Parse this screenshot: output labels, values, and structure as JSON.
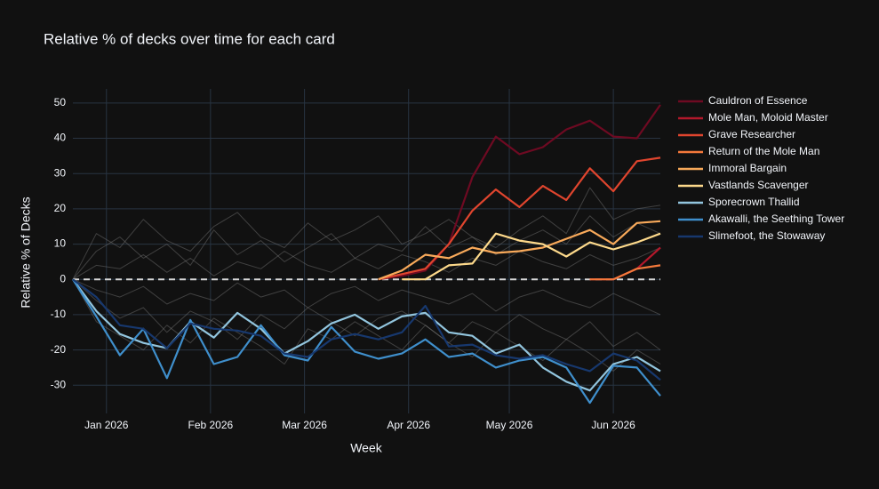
{
  "chart_data": {
    "type": "line",
    "title": "Relative  % of decks over time for each card",
    "x_label": "Week",
    "y_label": "Relative % of Decks",
    "x": [
      "2025-12-22",
      "2025-12-29",
      "2026-01-05",
      "2026-01-12",
      "2026-01-19",
      "2026-01-26",
      "2026-02-02",
      "2026-02-09",
      "2026-02-16",
      "2026-02-23",
      "2026-03-02",
      "2026-03-09",
      "2026-03-16",
      "2026-03-23",
      "2026-03-30",
      "2026-04-06",
      "2026-04-13",
      "2026-04-20",
      "2026-04-27",
      "2026-05-04",
      "2026-05-11",
      "2026-05-18",
      "2026-05-25",
      "2026-06-01",
      "2026-06-08",
      "2026-06-15"
    ],
    "xlim": [
      "2025-12-22",
      "2026-06-15"
    ],
    "xticks": [
      {
        "value": "2026-01-01",
        "label": "Jan 2026"
      },
      {
        "value": "2026-02-01",
        "label": "Feb 2026"
      },
      {
        "value": "2026-03-01",
        "label": "Mar 2026"
      },
      {
        "value": "2026-04-01",
        "label": "Apr 2026"
      },
      {
        "value": "2026-05-01",
        "label": "May 2026"
      },
      {
        "value": "2026-06-01",
        "label": "Jun 2026"
      }
    ],
    "ylim": [
      -38,
      54
    ],
    "yticks": [
      -30,
      -20,
      -10,
      0,
      10,
      20,
      30,
      40,
      50
    ],
    "grid": true,
    "zeroline": true,
    "legend": "right",
    "background_series": [
      {
        "color": "#7a7a7a",
        "values": [
          0,
          8,
          12,
          6,
          10,
          4,
          14,
          7,
          11,
          5,
          9,
          13,
          6,
          10,
          8,
          15,
          9,
          12,
          7,
          11,
          14,
          10,
          18,
          12,
          16,
          13
        ]
      },
      {
        "color": "#7a7a7a",
        "values": [
          0,
          -6,
          -11,
          -8,
          -15,
          -9,
          -12,
          -17,
          -10,
          -14,
          -8,
          -12,
          -16,
          -11,
          -9,
          -13,
          -18,
          -12,
          -15,
          -10,
          -14,
          -17,
          -12,
          -19,
          -15,
          -20
        ]
      },
      {
        "color": "#7a7a7a",
        "values": [
          0,
          4,
          3,
          7,
          2,
          6,
          1,
          5,
          3,
          8,
          4,
          2,
          6,
          3,
          7,
          5,
          2,
          6,
          4,
          8,
          5,
          3,
          7,
          4,
          6,
          9
        ]
      },
      {
        "color": "#7a7a7a",
        "values": [
          0,
          -3,
          -5,
          -2,
          -7,
          -4,
          -6,
          -1,
          -5,
          -3,
          -8,
          -4,
          -2,
          -6,
          -3,
          -5,
          -7,
          -4,
          -9,
          -5,
          -3,
          -6,
          -8,
          -4,
          -7,
          -10
        ]
      },
      {
        "color": "#7a7a7a",
        "values": [
          0,
          13,
          9,
          17,
          11,
          8,
          15,
          19,
          12,
          9,
          16,
          11,
          14,
          18,
          10,
          13,
          17,
          12,
          9,
          14,
          18,
          13,
          26,
          17,
          20,
          21
        ]
      },
      {
        "color": "#7a7a7a",
        "values": [
          0,
          -12,
          -16,
          -20,
          -13,
          -18,
          -11,
          -15,
          -19,
          -24,
          -14,
          -17,
          -12,
          -16,
          -20,
          -13,
          -18,
          -22,
          -15,
          -19,
          -23,
          -17,
          -21,
          -26,
          -20,
          -24
        ]
      }
    ],
    "series": [
      {
        "name": "Cauldron of Essence",
        "color": "#6e0a22",
        "values": [
          null,
          null,
          null,
          null,
          null,
          null,
          null,
          null,
          null,
          null,
          null,
          null,
          null,
          0,
          1,
          2.5,
          10,
          29,
          40.5,
          35.5,
          37.5,
          42.5,
          45,
          40.5,
          40,
          49.5
        ]
      },
      {
        "name": "Mole Man, Moloid Master",
        "color": "#b2182b",
        "values": [
          null,
          null,
          null,
          null,
          null,
          null,
          null,
          null,
          null,
          null,
          null,
          null,
          null,
          null,
          null,
          null,
          null,
          null,
          null,
          null,
          null,
          null,
          0,
          0,
          3,
          9
        ]
      },
      {
        "name": "Grave Researcher",
        "color": "#e0452e",
        "values": [
          null,
          null,
          null,
          null,
          null,
          null,
          null,
          null,
          null,
          null,
          null,
          null,
          null,
          0,
          1.5,
          3,
          10,
          19.5,
          25.5,
          20.5,
          26.5,
          22.5,
          31.5,
          25,
          33.5,
          34.5
        ]
      },
      {
        "name": "Return of the Mole Man",
        "color": "#f4793b",
        "values": [
          null,
          null,
          null,
          null,
          null,
          null,
          null,
          null,
          null,
          null,
          null,
          null,
          null,
          null,
          null,
          null,
          null,
          null,
          null,
          null,
          null,
          null,
          0,
          0,
          3,
          4
        ]
      },
      {
        "name": "Immoral Bargain",
        "color": "#f8a95a",
        "values": [
          null,
          null,
          null,
          null,
          null,
          null,
          null,
          null,
          null,
          null,
          null,
          null,
          null,
          0,
          2.5,
          7,
          6,
          9,
          7.5,
          8,
          9,
          11.5,
          14,
          10,
          16,
          16.5
        ]
      },
      {
        "name": "Vastlands Scavenger",
        "color": "#fdd98b",
        "values": [
          null,
          null,
          null,
          null,
          null,
          null,
          null,
          null,
          null,
          null,
          null,
          null,
          null,
          null,
          0,
          0,
          4,
          4.5,
          13,
          11,
          10,
          6.5,
          10.5,
          8.5,
          10.5,
          13
        ]
      },
      {
        "name": "Sporecrown Thallid",
        "color": "#92c5de",
        "values": [
          0,
          -9,
          -15.5,
          -18,
          -19.5,
          -12,
          -16.5,
          -9.5,
          -14,
          -21,
          -17.5,
          -12.5,
          -10,
          -14,
          -10.5,
          -9.5,
          -15,
          -16,
          -21,
          -18.5,
          -25,
          -29,
          -31.5,
          -24,
          -22,
          -26
        ]
      },
      {
        "name": "Akawalli, the Seething Tower",
        "color": "#3f8fcc",
        "values": [
          0,
          -10.5,
          -21.5,
          -14,
          -28,
          -11.5,
          -24,
          -22,
          -13,
          -21.5,
          -23,
          -13.5,
          -20.5,
          -22.5,
          -21,
          -17,
          -22,
          -21,
          -25,
          -23,
          -22,
          -25,
          -35,
          -24.5,
          -25,
          -33
        ]
      },
      {
        "name": "Slimefoot, the Stowaway",
        "color": "#17386e",
        "values": [
          0,
          -5,
          -13,
          -14,
          -19.5,
          -12.5,
          -14,
          -14.5,
          -16,
          -21,
          -22,
          -17,
          -15.5,
          -17,
          -15,
          -7.5,
          -19,
          -18.5,
          -21.5,
          -22.5,
          -21.5,
          -24,
          -26,
          -21,
          -23,
          -28.5
        ]
      }
    ]
  }
}
